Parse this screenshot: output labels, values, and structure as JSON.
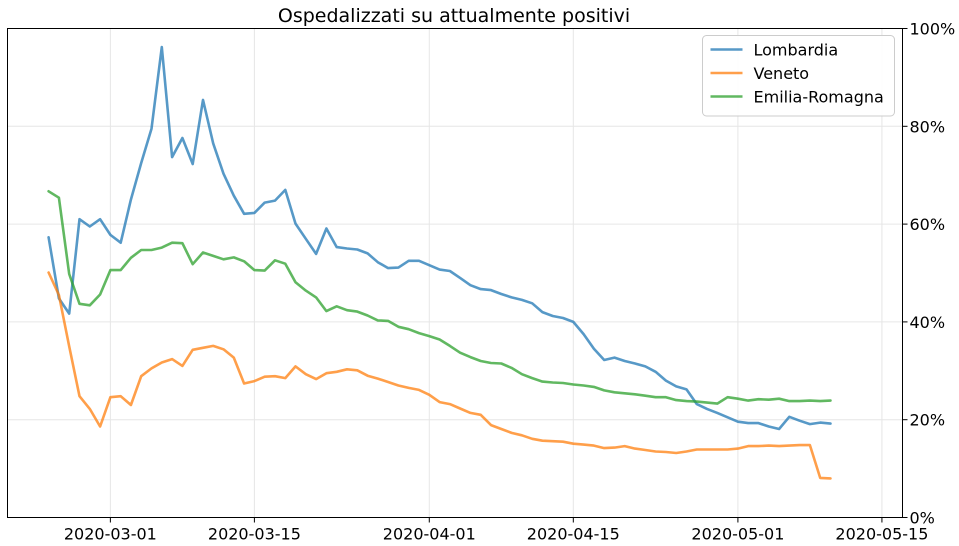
{
  "chart_data": {
    "type": "line",
    "title": "Ospedalizzati su attualmente positivi",
    "xlabel": "",
    "ylabel": "",
    "x_start": "2020-02-24",
    "x_end": "2020-05-12",
    "xlim": [
      "2020-02-20",
      "2020-05-17"
    ],
    "ylim": [
      0,
      100
    ],
    "y_axis_side": "right",
    "y_unit": "%",
    "grid": true,
    "legend_position": "top-right",
    "x_ticks": [
      "2020-03-01",
      "2020-03-15",
      "2020-04-01",
      "2020-04-15",
      "2020-05-01",
      "2020-05-15"
    ],
    "y_ticks": [
      "0%",
      "20%",
      "40%",
      "60%",
      "80%",
      "100%"
    ],
    "series": [
      {
        "name": "Lombardia",
        "color": "#1f77b4",
        "values": [
          57.3,
          44.8,
          41.7,
          61.0,
          59.5,
          61.0,
          57.8,
          56.2,
          65.0,
          72.5,
          79.5,
          96.2,
          73.7,
          77.6,
          72.3,
          85.4,
          76.5,
          70.3,
          65.8,
          62.1,
          62.3,
          64.4,
          64.8,
          67.0,
          60.1,
          57.0,
          53.9,
          59.1,
          55.3,
          55.0,
          54.8,
          54.0,
          52.2,
          51.0,
          51.1,
          52.5,
          52.5,
          51.6,
          50.7,
          50.4,
          49.0,
          47.5,
          46.7,
          46.5,
          45.7,
          45.0,
          44.5,
          43.8,
          42.0,
          41.2,
          40.8,
          40.0,
          37.5,
          34.5,
          32.2,
          32.7,
          32.0,
          31.5,
          30.9,
          29.8,
          28.0,
          26.8,
          26.2,
          23.2,
          22.2,
          21.4,
          20.5,
          19.6,
          19.3,
          19.3,
          18.6,
          18.1,
          20.6,
          19.8,
          19.1,
          19.4,
          19.2
        ]
      },
      {
        "name": "Veneto",
        "color": "#ff7f0e",
        "values": [
          50.1,
          45.5,
          35.0,
          24.8,
          22.2,
          18.6,
          24.6,
          24.8,
          23.0,
          28.9,
          30.5,
          31.7,
          32.4,
          31.0,
          34.3,
          34.7,
          35.1,
          34.4,
          32.7,
          27.4,
          27.9,
          28.8,
          28.9,
          28.5,
          30.9,
          29.3,
          28.3,
          29.5,
          29.8,
          30.3,
          30.1,
          29.0,
          28.4,
          27.7,
          27.0,
          26.5,
          26.1,
          25.1,
          23.6,
          23.2,
          22.3,
          21.4,
          21.0,
          18.9,
          18.1,
          17.3,
          16.8,
          16.1,
          15.7,
          15.6,
          15.5,
          15.1,
          14.9,
          14.7,
          14.2,
          14.3,
          14.6,
          14.1,
          13.8,
          13.5,
          13.4,
          13.2,
          13.5,
          13.9,
          13.9,
          13.9,
          13.9,
          14.1,
          14.6,
          14.6,
          14.7,
          14.6,
          14.7,
          14.8,
          14.8,
          8.1,
          8.0
        ]
      },
      {
        "name": "Emilia-Romagna",
        "color": "#2ca02c",
        "values": [
          66.7,
          65.4,
          49.8,
          43.7,
          43.4,
          45.6,
          50.6,
          50.6,
          53.1,
          54.7,
          54.7,
          55.2,
          56.2,
          56.1,
          51.8,
          54.2,
          53.5,
          52.8,
          53.2,
          52.4,
          50.6,
          50.5,
          52.6,
          51.9,
          48.1,
          46.4,
          45.0,
          42.2,
          43.2,
          42.4,
          42.1,
          41.3,
          40.3,
          40.2,
          39.0,
          38.5,
          37.7,
          37.1,
          36.4,
          35.1,
          33.7,
          32.8,
          32.0,
          31.6,
          31.5,
          30.6,
          29.3,
          28.5,
          27.8,
          27.6,
          27.5,
          27.2,
          27.0,
          26.7,
          26.0,
          25.6,
          25.4,
          25.2,
          24.9,
          24.6,
          24.6,
          24.0,
          23.8,
          23.7,
          23.5,
          23.3,
          24.6,
          24.3,
          23.9,
          24.2,
          24.1,
          24.3,
          23.8,
          23.8,
          23.9,
          23.8,
          23.9
        ]
      }
    ]
  }
}
